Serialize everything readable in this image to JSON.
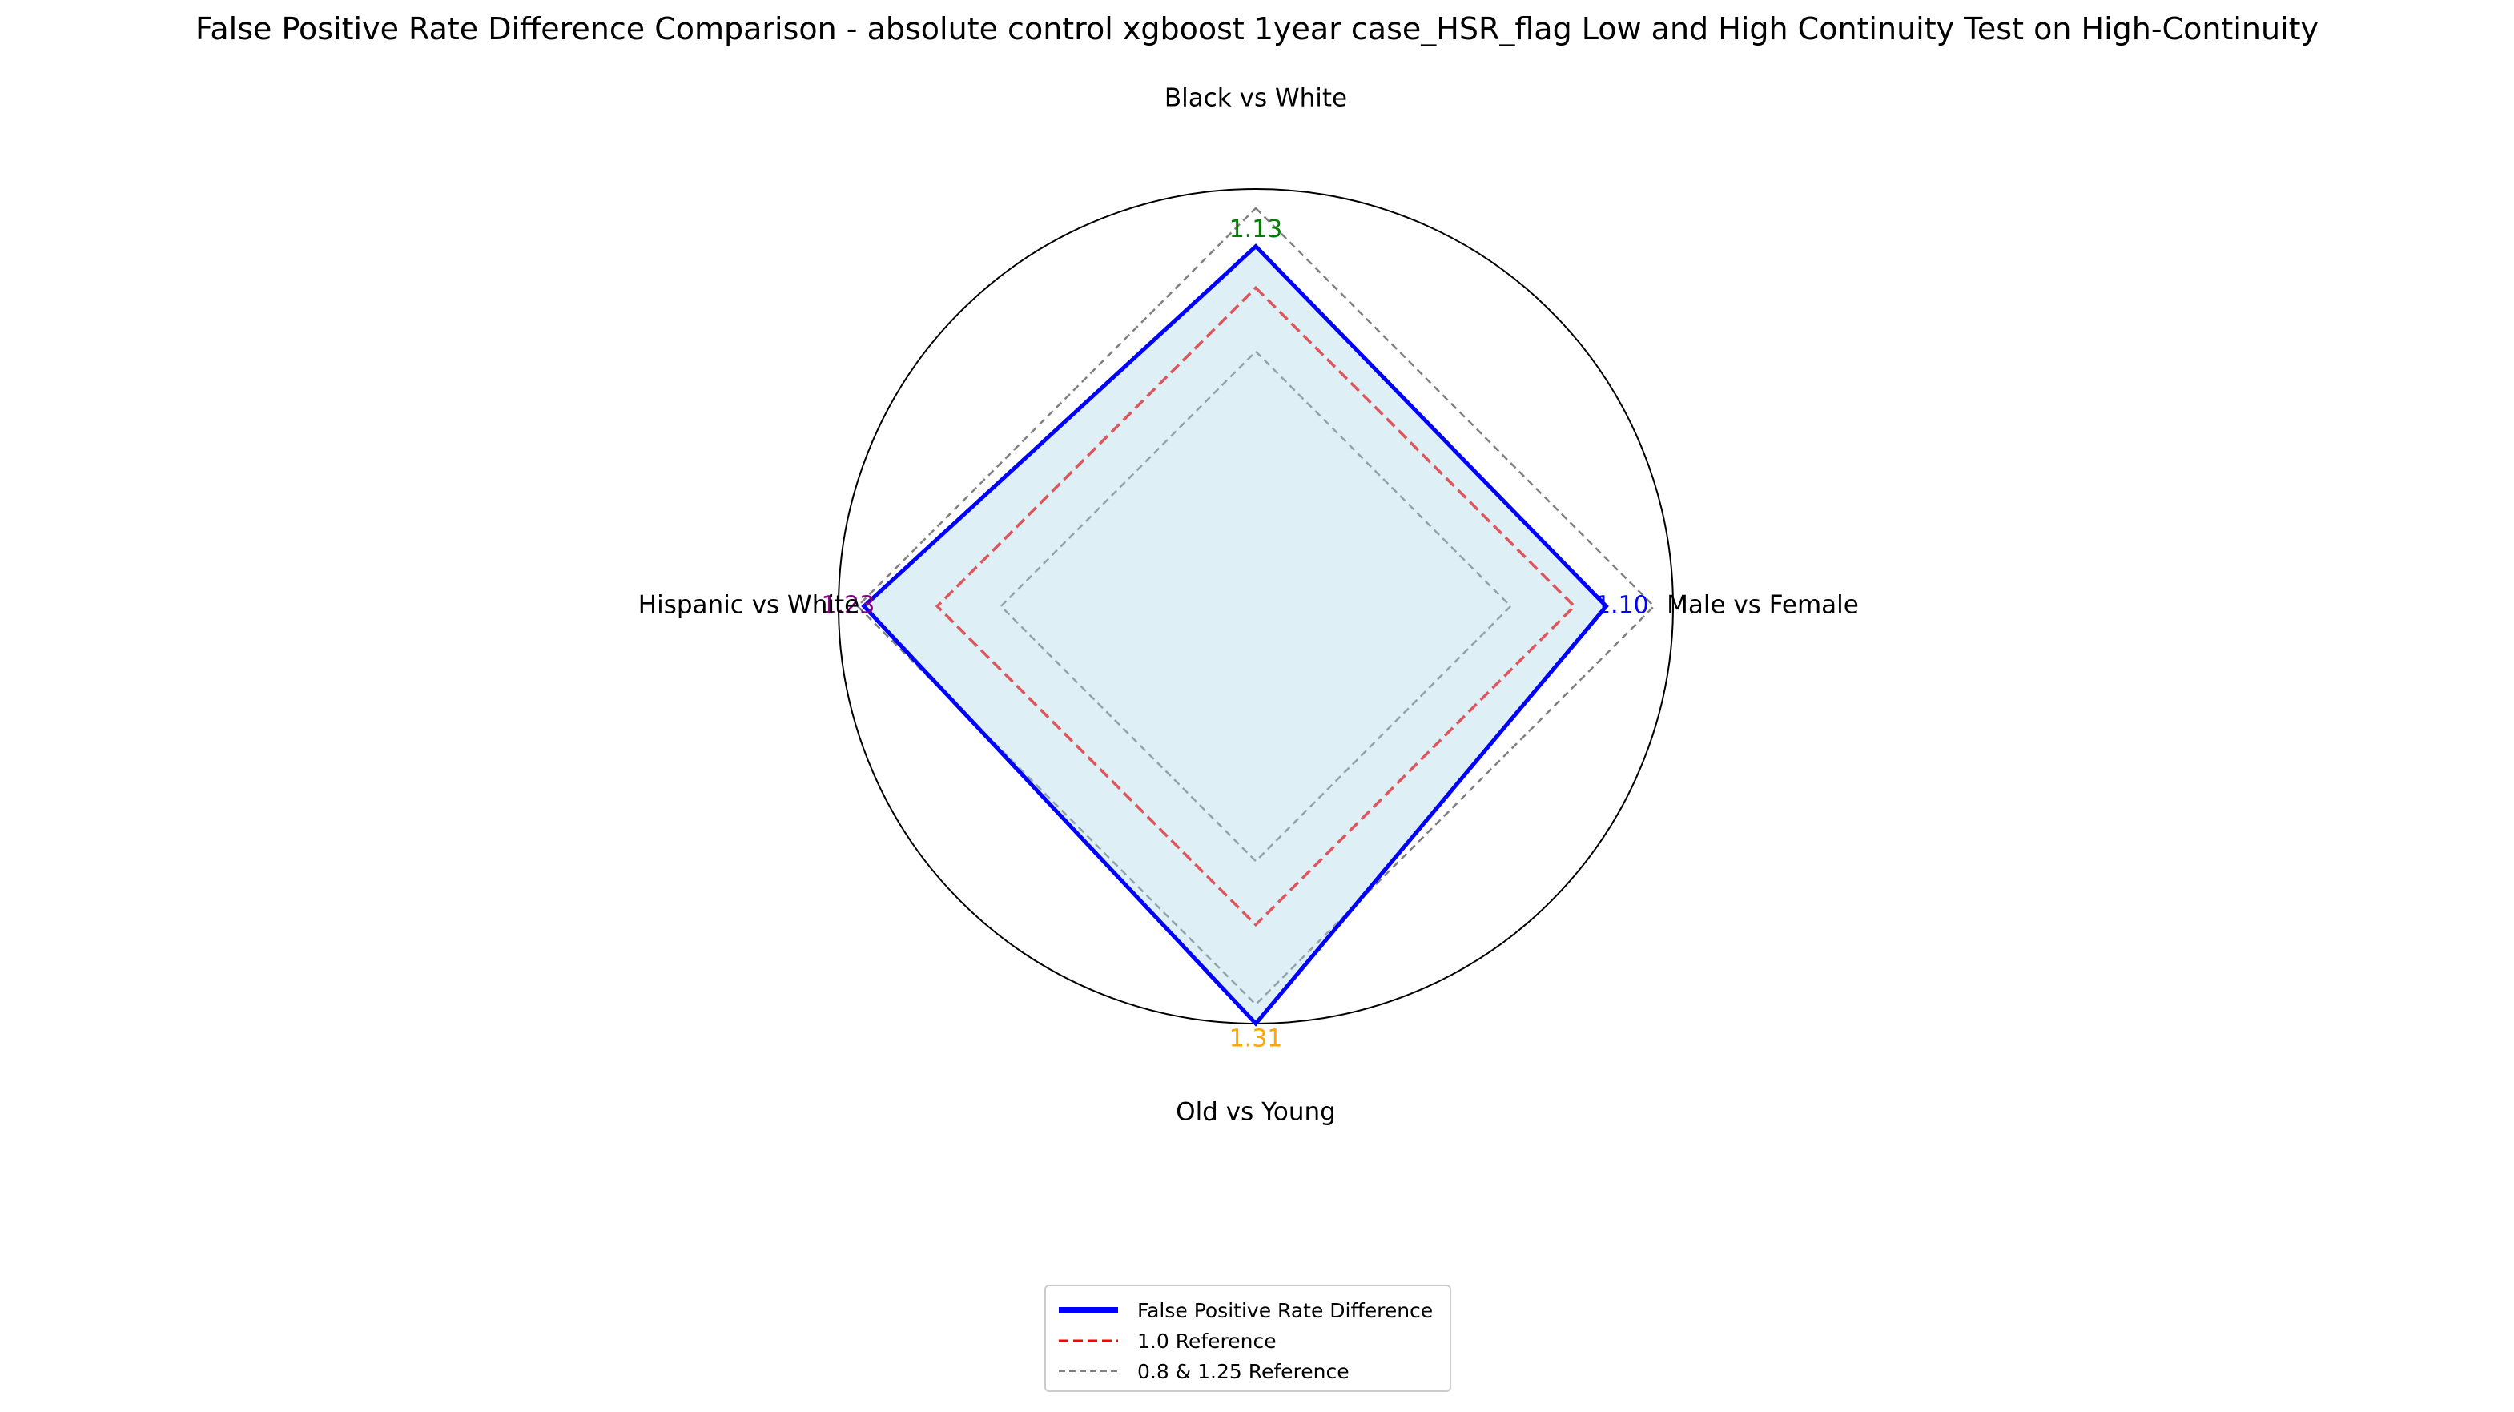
{
  "chart_data": {
    "type": "radar",
    "title": "False Positive Rate Difference Comparison - absolute control xgboost 1year case_HSR_flag Low and High Continuity Test on High-Continuity",
    "axes": [
      "Black vs White",
      "Male vs Female",
      "Old vs Young",
      "Hispanic vs White"
    ],
    "series": [
      {
        "name": "False Positive Rate Difference",
        "values": [
          1.13,
          1.1,
          1.31,
          1.23
        ],
        "color": "#0000ff",
        "fill": "#add8e6"
      }
    ],
    "value_labels": [
      "1.13",
      "1.10",
      "1.31",
      "1.23"
    ],
    "value_label_colors": [
      "#008000",
      "#0000ff",
      "#ffa500",
      "#800080"
    ],
    "references": [
      {
        "name": "1.0 Reference",
        "value": 1.0,
        "color": "#ff0000",
        "style": "dashed"
      },
      {
        "name": "0.8 & 1.25 Reference",
        "values": [
          0.8,
          1.25
        ],
        "color": "#808080",
        "style": "dashed"
      }
    ],
    "rlim": [
      0,
      1.31
    ],
    "grid": false,
    "legend_position": "bottom-center"
  }
}
